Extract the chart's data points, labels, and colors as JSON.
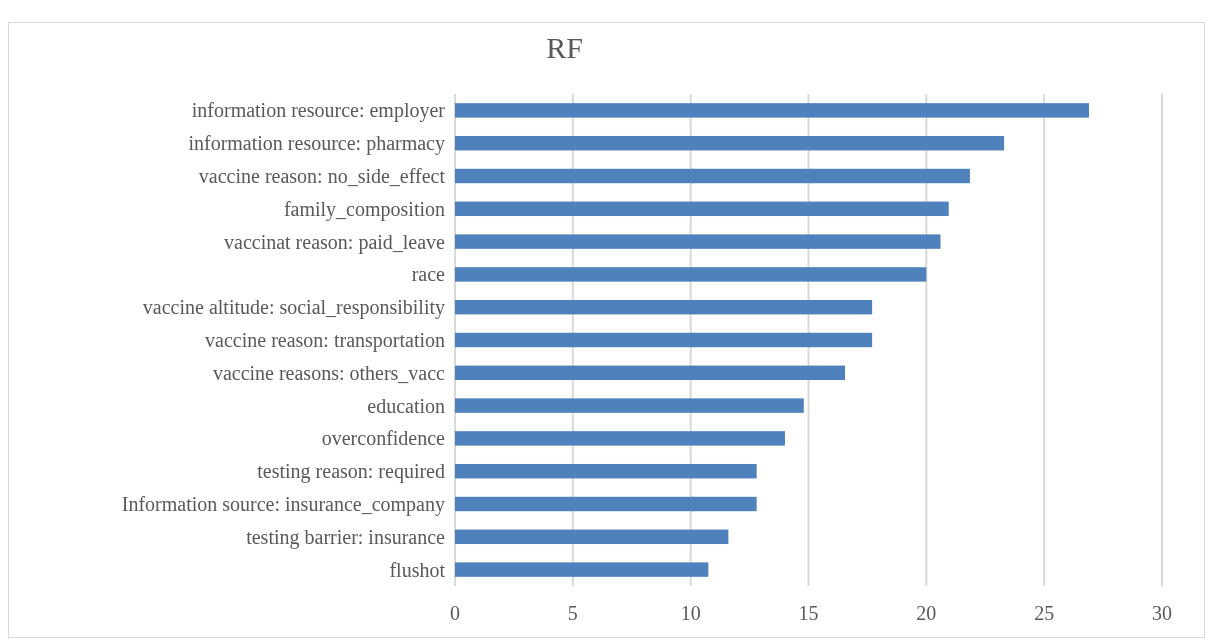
{
  "chart_data": {
    "type": "bar",
    "orientation": "horizontal",
    "title": "RF",
    "categories": [
      "information resource: employer",
      "information resource: pharmacy",
      "vaccine reason: no_side_effect",
      "family_composition",
      "vaccinat reason: paid_leave",
      "race",
      "vaccine altitude: social_responsibility",
      "vaccine reason: transportation",
      "vaccine reasons: others_vacc",
      "education",
      "overconfidence",
      "testing reason: required",
      "Information source: insurance_company",
      "testing barrier: insurance",
      "flushot"
    ],
    "values": [
      26.9,
      23.3,
      21.85,
      20.95,
      20.6,
      20.0,
      17.7,
      17.7,
      16.55,
      14.8,
      14.0,
      12.8,
      12.8,
      11.6,
      10.75
    ],
    "color": "#4f81bd",
    "xlim": [
      0,
      30
    ],
    "xticks": [
      0,
      5,
      10,
      15,
      20,
      25,
      30
    ],
    "grid": "x"
  }
}
